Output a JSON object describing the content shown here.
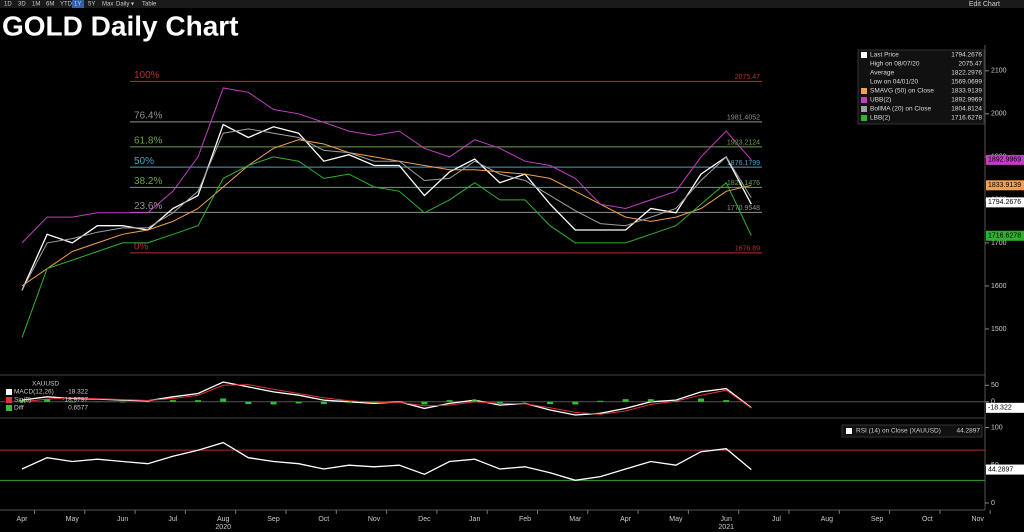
{
  "toolbar": {
    "ranges": [
      "1D",
      "3D",
      "1M",
      "6M",
      "YTD",
      "1Y",
      "5Y",
      "Max",
      "Daily ▾",
      "Table"
    ],
    "active": 5,
    "right": "Edit Chart"
  },
  "chart_data": [
    {
      "type": "line",
      "title": "GOLD Daily Chart",
      "categories": [
        "Apr",
        null,
        "May",
        null,
        "Jun",
        null,
        "Jul",
        null,
        "Aug",
        null,
        "Sep",
        null,
        "Oct",
        null,
        "Nov",
        null,
        "Dec",
        null,
        "Jan",
        null,
        "Feb",
        null,
        "Mar",
        null,
        "Apr",
        null,
        "May",
        null,
        "Jun",
        null,
        "Jul",
        null,
        "Aug",
        null,
        "Sep",
        null,
        "Oct",
        null,
        "Nov",
        null
      ],
      "year_labels": [
        "2020",
        "2021"
      ],
      "ylim": [
        1400,
        2160
      ],
      "yticks": [
        1500,
        1600,
        1700,
        1800,
        1900,
        2000,
        2100
      ],
      "series": [
        {
          "name": "Last Price",
          "color": "#ffffff",
          "last": 1794.2676,
          "values": [
            1590,
            1720,
            1700,
            1740,
            1740,
            1730,
            1780,
            1810,
            1975,
            1945,
            1970,
            1955,
            1890,
            1905,
            1880,
            1880,
            1810,
            1865,
            1895,
            1840,
            1860,
            1790,
            1730,
            1730,
            1730,
            1780,
            1770,
            1860,
            1900,
            1790,
            null,
            null,
            null,
            null,
            null,
            null,
            null,
            null,
            null,
            null
          ]
        },
        {
          "name": "SMAVG (50) on Close",
          "color": "#f0a050",
          "last": 1833.9139,
          "values": [
            1600,
            1640,
            1680,
            1700,
            1720,
            1730,
            1750,
            1780,
            1830,
            1880,
            1920,
            1940,
            1930,
            1910,
            1900,
            1890,
            1880,
            1870,
            1870,
            1865,
            1860,
            1850,
            1820,
            1790,
            1760,
            1750,
            1760,
            1780,
            1820,
            1834,
            null,
            null,
            null,
            null,
            null,
            null,
            null,
            null,
            null,
            null
          ]
        },
        {
          "name": "UBB(2)",
          "color": "#c040c0",
          "last": 1892.9969,
          "values": [
            1700,
            1760,
            1760,
            1770,
            1770,
            1770,
            1820,
            1900,
            2060,
            2050,
            2010,
            2000,
            1980,
            1960,
            1950,
            1960,
            1920,
            1900,
            1940,
            1920,
            1890,
            1880,
            1850,
            1790,
            1780,
            1800,
            1820,
            1900,
            1960,
            1893,
            null,
            null,
            null,
            null,
            null,
            null,
            null,
            null,
            null,
            null
          ]
        },
        {
          "name": "BollMA (20) on Close",
          "color": "#a0a0a0",
          "last": 1804.8124,
          "values": [
            1590,
            1700,
            1710,
            1725,
            1735,
            1735,
            1770,
            1820,
            1955,
            1965,
            1955,
            1945,
            1915,
            1910,
            1890,
            1890,
            1845,
            1850,
            1890,
            1860,
            1845,
            1810,
            1775,
            1745,
            1740,
            1760,
            1780,
            1845,
            1900,
            1805,
            null,
            null,
            null,
            null,
            null,
            null,
            null,
            null,
            null,
            null
          ]
        },
        {
          "name": "LBB(2)",
          "color": "#30b030",
          "last": 1716.6278,
          "values": [
            1480,
            1640,
            1660,
            1680,
            1700,
            1700,
            1720,
            1740,
            1850,
            1880,
            1900,
            1890,
            1850,
            1860,
            1830,
            1820,
            1770,
            1800,
            1840,
            1800,
            1800,
            1740,
            1700,
            1700,
            1700,
            1720,
            1740,
            1790,
            1840,
            1717,
            null,
            null,
            null,
            null,
            null,
            null,
            null,
            null,
            null,
            null
          ]
        }
      ],
      "stats": [
        {
          "label": "High on 08/07/20",
          "value": 2075.47
        },
        {
          "label": "Average",
          "value": 1822.2976
        },
        {
          "label": "Low on 04/01/20",
          "value": 1569.0699
        }
      ],
      "fib": [
        {
          "label": "100%",
          "value": 2075.47,
          "color": "#b03030"
        },
        {
          "label": "76.4%",
          "value": 1981.4052,
          "color": "#909090"
        },
        {
          "label": "61.8%",
          "value": 1923.2124,
          "color": "#70a050"
        },
        {
          "label": "50%",
          "value": 1876.1799,
          "color": "#50a0c0"
        },
        {
          "label": "38.2%",
          "value": 1829.1476,
          "color": "#70a050"
        },
        {
          "label": "23.6%",
          "value": 1770.9548,
          "color": "#909090"
        },
        {
          "label": "0%",
          "value": 1676.89,
          "color": "#b03030"
        }
      ]
    },
    {
      "type": "line",
      "title": "XAUUSD",
      "ylim": [
        -40,
        75
      ],
      "yticks": [
        0,
        50
      ],
      "series": [
        {
          "name": "MACD(12,26)",
          "color": "#ffffff",
          "last": -18.322,
          "values": [
            5,
            15,
            10,
            8,
            5,
            3,
            15,
            25,
            60,
            45,
            30,
            20,
            5,
            0,
            -5,
            0,
            -20,
            -5,
            5,
            -10,
            -5,
            -25,
            -40,
            -35,
            -20,
            0,
            5,
            30,
            40,
            -18,
            null,
            null,
            null,
            null,
            null,
            null,
            null,
            null,
            null,
            null
          ]
        },
        {
          "name": "Sig(9)",
          "color": "#e03030",
          "last": -18.9797,
          "values": [
            0,
            8,
            12,
            9,
            7,
            4,
            10,
            20,
            50,
            52,
            38,
            25,
            12,
            3,
            -2,
            -2,
            -12,
            -10,
            0,
            -5,
            -6,
            -18,
            -32,
            -38,
            -28,
            -8,
            2,
            20,
            35,
            -19,
            null,
            null,
            null,
            null,
            null,
            null,
            null,
            null,
            null,
            null
          ]
        },
        {
          "name": "Diff",
          "color": "#30c030",
          "last": 0.6577,
          "values": [
            5,
            7,
            -2,
            -1,
            -2,
            -1,
            5,
            5,
            10,
            -7,
            -8,
            -5,
            -7,
            -3,
            -3,
            2,
            -8,
            5,
            5,
            -5,
            1,
            -7,
            -8,
            3,
            8,
            8,
            3,
            10,
            5,
            0.6577,
            null,
            null,
            null,
            null,
            null,
            null,
            null,
            null,
            null,
            null
          ]
        }
      ]
    },
    {
      "type": "line",
      "title": "RSI (14)  on Close (XAUUSD)",
      "ylim": [
        -12,
        110
      ],
      "yticks": [
        0,
        50,
        100
      ],
      "levels": [
        70,
        30
      ],
      "series": [
        {
          "name": "RSI",
          "color": "#ffffff",
          "last": 44.2897,
          "values": [
            45,
            60,
            55,
            58,
            55,
            52,
            62,
            70,
            80,
            60,
            55,
            52,
            45,
            50,
            48,
            50,
            38,
            55,
            58,
            45,
            48,
            40,
            30,
            35,
            45,
            55,
            50,
            68,
            72,
            44.2897,
            null,
            null,
            null,
            null,
            null,
            null,
            null,
            null,
            null,
            null
          ]
        }
      ]
    }
  ]
}
